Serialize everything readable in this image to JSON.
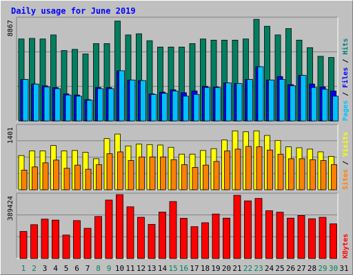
{
  "title": "Daily usage for June 2019",
  "chart_data": {
    "type": "bar",
    "title": "Daily usage for June 2019",
    "days": [
      "1",
      "2",
      "3",
      "4",
      "5",
      "6",
      "7",
      "8",
      "9",
      "10",
      "11",
      "12",
      "13",
      "14",
      "15",
      "16",
      "17",
      "18",
      "19",
      "20",
      "21",
      "22",
      "23",
      "24",
      "25",
      "26",
      "27",
      "28",
      "29",
      "30",
      "31"
    ],
    "weekend_days": [
      1,
      2,
      8,
      9,
      15,
      16,
      22,
      23,
      29,
      30
    ],
    "panels": [
      {
        "name": "hits-files-pages",
        "ymax_label": "8867",
        "ylim": [
          0,
          8867
        ],
        "side_labels": [
          {
            "text": "Hits",
            "color": "#008080"
          },
          {
            "text": "Files",
            "color": "#0000ff"
          },
          {
            "text": "Pages",
            "color": "#00c0ff"
          }
        ],
        "series": [
          {
            "name": "Hits",
            "color": "#008060",
            "values": [
              7100,
              7150,
              7100,
              7450,
              6100,
              6200,
              5800,
              6700,
              6700,
              8650,
              7450,
              7550,
              6950,
              6400,
              6400,
              6400,
              6700,
              7100,
              7000,
              7000,
              7000,
              7100,
              8800,
              8200,
              7450,
              8000,
              7000,
              6350,
              5600,
              5500,
              0
            ]
          },
          {
            "name": "Files",
            "color": "#0000ff",
            "values": [
              3600,
              3200,
              3050,
              2900,
              2350,
              2250,
              1850,
              2900,
              2900,
              4350,
              3550,
              3500,
              2350,
              2500,
              2700,
              2450,
              2600,
              3000,
              2950,
              3300,
              3250,
              3600,
              4700,
              3550,
              3850,
              3150,
              3950,
              3200,
              2950,
              2600,
              0
            ]
          },
          {
            "name": "Pages",
            "color": "#00c0ff",
            "values": [
              3600,
              3200,
              2950,
              2800,
              2250,
              2150,
              1800,
              2800,
              2800,
              4350,
              3550,
              3500,
              2300,
              2400,
              2600,
              2150,
              2300,
              2900,
              2900,
              3300,
              3250,
              3600,
              4700,
              3550,
              3600,
              3050,
              3950,
              2900,
              2750,
              2150,
              0
            ]
          }
        ]
      },
      {
        "name": "visits-sites",
        "ymax_label": "1401",
        "ylim": [
          0,
          1401
        ],
        "side_labels": [
          {
            "text": "Visits",
            "color": "#ffff00"
          },
          {
            "text": "Sites",
            "color": "#ff8000"
          }
        ],
        "series": [
          {
            "name": "Visits",
            "color": "#ffff00",
            "values": [
              750,
              850,
              850,
              970,
              850,
              860,
              820,
              680,
              1120,
              1220,
              960,
              1000,
              990,
              980,
              930,
              780,
              780,
              860,
              900,
              1090,
              1290,
              1270,
              1290,
              1190,
              1080,
              940,
              920,
              890,
              830,
              730,
              0
            ]
          },
          {
            "name": "Sites",
            "color": "#ff8000",
            "values": [
              430,
              500,
              590,
              650,
              470,
              540,
              450,
              550,
              790,
              830,
              640,
              720,
              720,
              720,
              660,
              550,
              490,
              540,
              620,
              850,
              890,
              950,
              940,
              870,
              780,
              680,
              680,
              660,
              640,
              550,
              0
            ]
          }
        ]
      },
      {
        "name": "kbytes",
        "ymax_label": "389424",
        "ylim": [
          0,
          389424
        ],
        "side_labels": [
          {
            "text": "KBytes",
            "color": "#ff0000"
          }
        ],
        "series": [
          {
            "name": "KBytes",
            "color": "#ff0000",
            "values": [
              165000,
              206000,
              240000,
              234000,
              143000,
              231000,
              184000,
              256000,
              356000,
              389000,
              315000,
              251000,
              208000,
              283000,
              347000,
              245000,
              194000,
              218000,
              271000,
              246000,
              385000,
              351000,
              366000,
              291000,
              282000,
              246000,
              262000,
              242000,
              251000,
              211000,
              0
            ]
          }
        ]
      }
    ]
  }
}
